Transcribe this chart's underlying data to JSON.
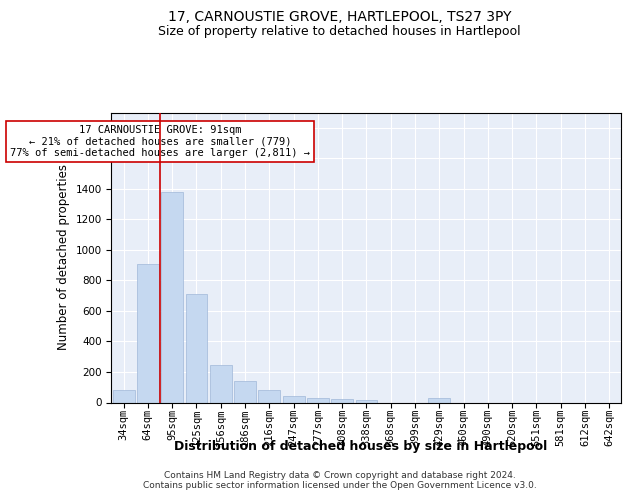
{
  "title": "17, CARNOUSTIE GROVE, HARTLEPOOL, TS27 3PY",
  "subtitle": "Size of property relative to detached houses in Hartlepool",
  "xlabel": "Distribution of detached houses by size in Hartlepool",
  "ylabel": "Number of detached properties",
  "categories": [
    "34sqm",
    "64sqm",
    "95sqm",
    "125sqm",
    "156sqm",
    "186sqm",
    "216sqm",
    "247sqm",
    "277sqm",
    "308sqm",
    "338sqm",
    "368sqm",
    "399sqm",
    "429sqm",
    "460sqm",
    "490sqm",
    "520sqm",
    "551sqm",
    "581sqm",
    "612sqm",
    "642sqm"
  ],
  "values": [
    80,
    910,
    1380,
    710,
    245,
    140,
    80,
    45,
    30,
    20,
    15,
    0,
    0,
    30,
    0,
    0,
    0,
    0,
    0,
    0,
    0
  ],
  "bar_color": "#c5d8f0",
  "bar_edge_color": "#a0b8d8",
  "vline_color": "#cc0000",
  "vline_x_index": 2,
  "annotation_text": "17 CARNOUSTIE GROVE: 91sqm\n← 21% of detached houses are smaller (779)\n77% of semi-detached houses are larger (2,811) →",
  "annotation_box_color": "#ffffff",
  "annotation_box_edge": "#cc0000",
  "ylim": [
    0,
    1900
  ],
  "yticks": [
    0,
    200,
    400,
    600,
    800,
    1000,
    1200,
    1400,
    1600,
    1800
  ],
  "bg_color": "#e8eef8",
  "footer_line1": "Contains HM Land Registry data © Crown copyright and database right 2024.",
  "footer_line2": "Contains public sector information licensed under the Open Government Licence v3.0.",
  "title_fontsize": 10,
  "subtitle_fontsize": 9,
  "axis_label_fontsize": 8.5,
  "tick_fontsize": 7.5,
  "footer_fontsize": 6.5,
  "annotation_fontsize": 7.5
}
